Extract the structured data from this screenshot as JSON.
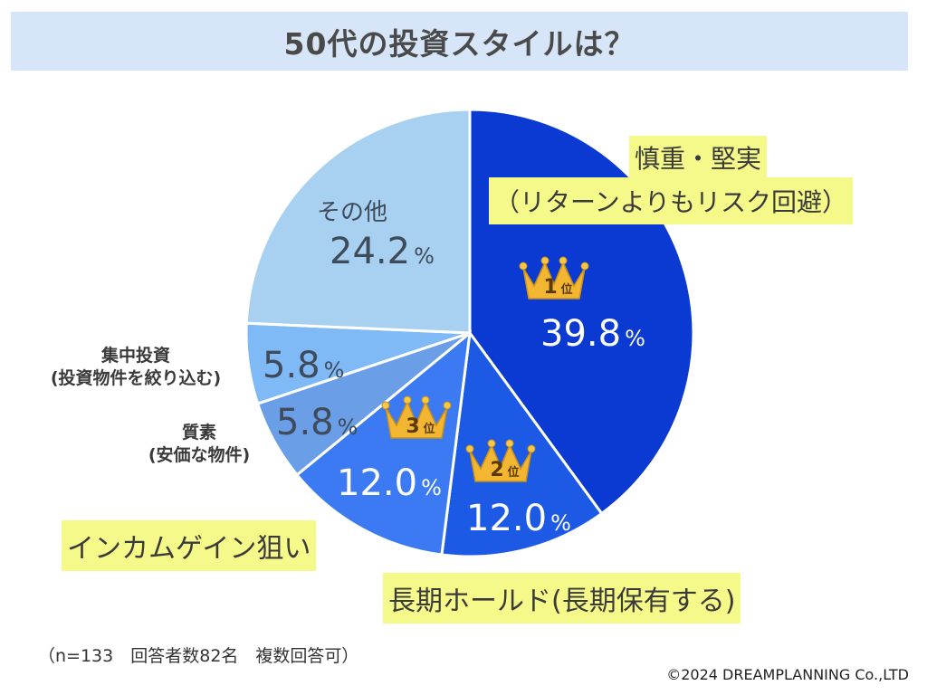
{
  "title": "50代の投資スタイルは？",
  "chart_data": {
    "type": "pie",
    "slices": [
      {
        "name": "慎重・堅実（リターンよりもリスク回避）",
        "value": 39.8,
        "color": "#0a3ad2",
        "rank": "1"
      },
      {
        "name": "長期ホールド(長期保有する)",
        "value": 12.0,
        "color": "#1c5ae6",
        "rank": "2"
      },
      {
        "name": "インカムゲイン狙い",
        "value": 12.0,
        "color": "#3b7af2",
        "rank": "3"
      },
      {
        "name": "質素(安価な物件)",
        "value": 5.8,
        "color": "#6a9ee6"
      },
      {
        "name": "集中投資(投資物件を絞り込む)",
        "value": 5.8,
        "color": "#7fbaf6"
      },
      {
        "name": "その他",
        "value": 24.2,
        "color": "#a8d0f0"
      }
    ]
  },
  "labels": {
    "slice1_line1": "慎重・堅実",
    "slice1_line2": "（リターンよりもリスク回避）",
    "slice1_value": "39.8",
    "slice2_name": "長期ホールド(長期保有する)",
    "slice2_value": "12.0",
    "slice3_name": "インカムゲイン狙い",
    "slice3_value": "12.0",
    "slice4_line1": "質素",
    "slice4_line2": "(安価な物件)",
    "slice4_value": "5.8",
    "slice5_line1": "集中投資",
    "slice5_line2": "(投資物件を絞り込む)",
    "slice5_value": "5.8",
    "slice6_name": "その他",
    "slice6_value": "24.2",
    "percent": "%",
    "rank_suffix": "位"
  },
  "footnote": "（n=133　回答者数82名　複数回答可）",
  "copyright": "©2024 DREAMPLANNING Co.,LTD"
}
